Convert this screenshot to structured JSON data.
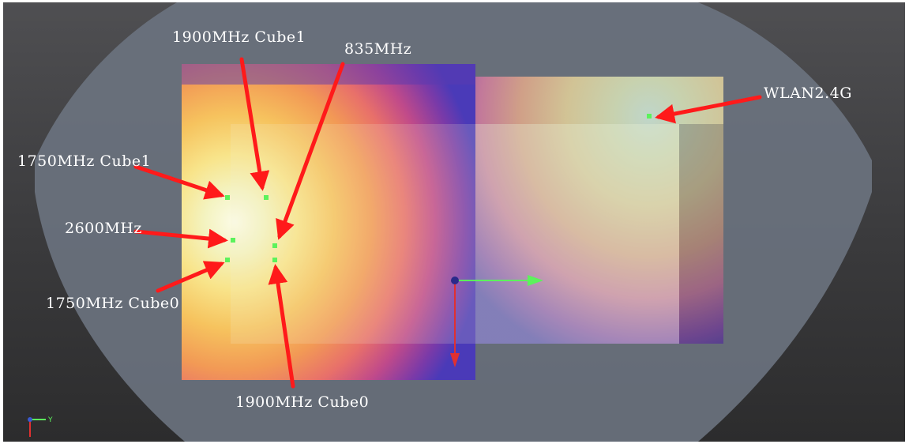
{
  "annotations": {
    "cube1_1900": "1900MHz Cube1",
    "band_835": "835MHz",
    "wlan": "WLAN2.4G",
    "cube1_1750": "1750MHz Cube1",
    "band_2600": "2600MHz",
    "cube0_1750": "1750MHz Cube0",
    "cube0_1900": "1900MHz Cube0"
  },
  "axis_triad": {
    "y_label": "Y"
  },
  "colors": {
    "arrow": "#ff1a1a",
    "marker": "#5cf25c",
    "background": "#3f3f41",
    "phantom": "#6b7380"
  }
}
